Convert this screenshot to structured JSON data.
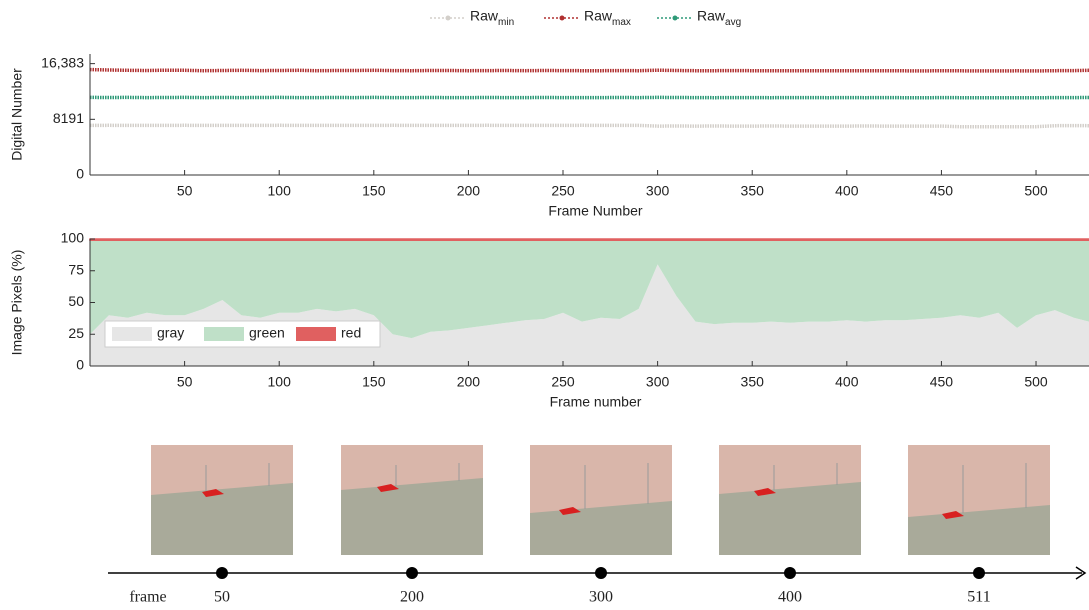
{
  "chart_data": [
    {
      "type": "line",
      "xlabel": "Frame Number",
      "ylabel": "Digital Number",
      "xlim": [
        0,
        528
      ],
      "ylim": [
        0,
        17800
      ],
      "xticks": [
        50,
        100,
        150,
        200,
        250,
        300,
        350,
        400,
        450,
        500
      ],
      "yticks": [
        0,
        8191,
        {
          "value": 16383,
          "label": "16,383"
        }
      ],
      "x": [
        0,
        10,
        20,
        30,
        40,
        50,
        60,
        70,
        80,
        90,
        100,
        110,
        120,
        130,
        140,
        150,
        160,
        170,
        180,
        190,
        200,
        210,
        220,
        230,
        240,
        250,
        260,
        270,
        280,
        290,
        300,
        310,
        320,
        330,
        340,
        350,
        360,
        370,
        380,
        390,
        400,
        410,
        420,
        430,
        440,
        450,
        460,
        470,
        480,
        490,
        500,
        510,
        520,
        528
      ],
      "series": [
        {
          "name": "Raw_min",
          "color": "#d3cfca",
          "values": [
            7300,
            7310,
            7300,
            7290,
            7300,
            7310,
            7300,
            7300,
            7290,
            7300,
            7310,
            7300,
            7300,
            7290,
            7300,
            7300,
            7310,
            7300,
            7290,
            7300,
            7300,
            7310,
            7300,
            7290,
            7300,
            7300,
            7310,
            7300,
            7300,
            7290,
            7200,
            7210,
            7200,
            7210,
            7200,
            7200,
            7210,
            7200,
            7200,
            7190,
            7200,
            7210,
            7200,
            7200,
            7190,
            7200,
            7100,
            7110,
            7100,
            7100,
            7110,
            7250,
            7260,
            7250
          ]
        },
        {
          "name": "Raw_max",
          "color": "#b03030",
          "values": [
            15500,
            15450,
            15400,
            15380,
            15420,
            15400,
            15350,
            15380,
            15400,
            15360,
            15380,
            15400,
            15350,
            15370,
            15380,
            15400,
            15360,
            15350,
            15380,
            15370,
            15350,
            15360,
            15370,
            15350,
            15380,
            15360,
            15350,
            15340,
            15360,
            15350,
            15420,
            15380,
            15350,
            15340,
            15360,
            15350,
            15340,
            15330,
            15350,
            15340,
            15330,
            15350,
            15340,
            15330,
            15320,
            15340,
            15330,
            15320,
            15310,
            15330,
            15320,
            15340,
            15360,
            15400
          ]
        },
        {
          "name": "Raw_avg",
          "color": "#2e9a78",
          "values": [
            11420,
            11400,
            11410,
            11390,
            11400,
            11410,
            11380,
            11400,
            11390,
            11400,
            11410,
            11380,
            11390,
            11400,
            11390,
            11410,
            11380,
            11390,
            11400,
            11380,
            11390,
            11400,
            11380,
            11390,
            11400,
            11390,
            11380,
            11390,
            11400,
            11380,
            11420,
            11400,
            11380,
            11370,
            11390,
            11380,
            11370,
            11380,
            11390,
            11370,
            11380,
            11370,
            11380,
            11370,
            11360,
            11380,
            11370,
            11360,
            11350,
            11370,
            11360,
            11380,
            11390,
            11400
          ]
        }
      ]
    },
    {
      "type": "stacked-area",
      "xlabel": "Frame number",
      "ylabel": "Image Pixels (%)",
      "xlim": [
        0,
        528
      ],
      "ylim": [
        0,
        100
      ],
      "xticks": [
        50,
        100,
        150,
        200,
        250,
        300,
        350,
        400,
        450,
        500
      ],
      "yticks": [
        0,
        25,
        50,
        75,
        100
      ],
      "x": [
        0,
        10,
        20,
        30,
        40,
        50,
        60,
        70,
        80,
        90,
        100,
        110,
        120,
        130,
        140,
        150,
        160,
        170,
        180,
        190,
        200,
        210,
        220,
        230,
        240,
        250,
        260,
        270,
        280,
        290,
        300,
        310,
        320,
        330,
        340,
        350,
        360,
        370,
        380,
        390,
        400,
        410,
        420,
        430,
        440,
        450,
        460,
        470,
        480,
        490,
        500,
        510,
        520,
        528
      ],
      "series": [
        {
          "name": "gray",
          "color": "#e6e6e6",
          "values": [
            25,
            40,
            38,
            42,
            40,
            40,
            45,
            52,
            40,
            38,
            42,
            42,
            45,
            43,
            45,
            40,
            25,
            22,
            27,
            28,
            30,
            32,
            34,
            36,
            37,
            42,
            35,
            38,
            37,
            45,
            80,
            55,
            35,
            33,
            34,
            34,
            35,
            34,
            35,
            35,
            36,
            35,
            36,
            36,
            37,
            38,
            40,
            38,
            42,
            30,
            40,
            44,
            38,
            35
          ]
        },
        {
          "name": "green",
          "color": "#bfe0c8",
          "values": [
            74,
            59,
            61,
            57,
            59,
            59,
            54,
            47,
            59,
            61,
            57,
            57,
            54,
            56,
            54,
            59,
            74,
            77,
            72,
            71,
            69,
            67,
            65,
            63,
            62,
            57,
            64,
            61,
            62,
            54,
            19,
            44,
            64,
            66,
            65,
            65,
            64,
            65,
            64,
            64,
            63,
            64,
            63,
            63,
            62,
            61,
            59,
            61,
            57,
            69,
            59,
            55,
            61,
            64
          ]
        },
        {
          "name": "red",
          "color": "#e06060",
          "values": [
            1,
            1,
            1,
            1,
            1,
            1,
            1,
            1,
            1,
            1,
            1,
            1,
            1,
            1,
            1,
            1,
            1,
            1,
            1,
            1,
            1,
            1,
            1,
            1,
            1,
            1,
            1,
            1,
            1,
            1,
            1,
            1,
            1,
            1,
            1,
            1,
            1,
            1,
            1,
            1,
            1,
            1,
            1,
            1,
            1,
            1,
            1,
            1,
            1,
            1,
            1,
            1,
            1,
            1
          ]
        }
      ]
    }
  ],
  "timeline": {
    "label": "frame",
    "frames": [
      "50",
      "200",
      "300",
      "400",
      "511"
    ]
  }
}
